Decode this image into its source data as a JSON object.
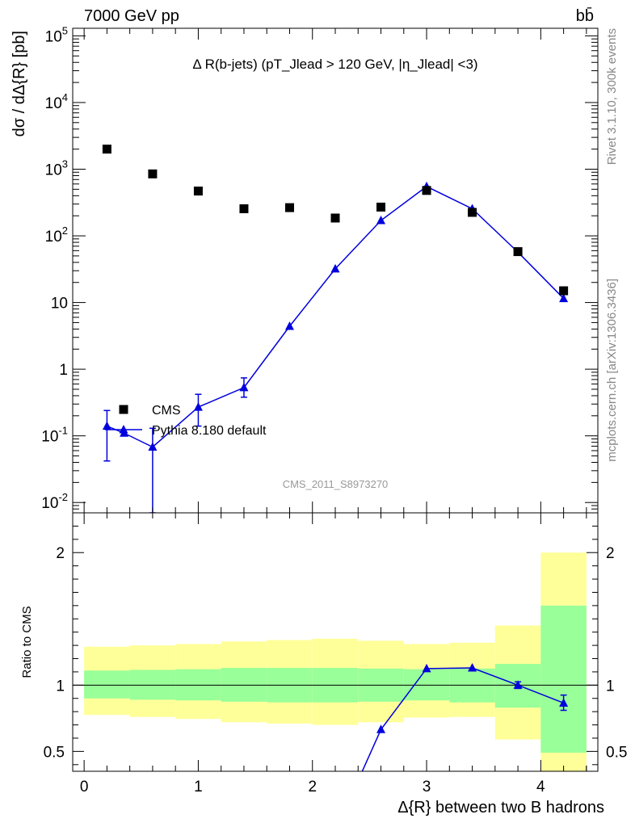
{
  "header": {
    "left": "7000 GeV pp",
    "right": "bb̄"
  },
  "side_texts": {
    "rivet": "Rivet 3.1.10,  300k events",
    "mcplots": "mcplots.cern.ch [arXiv:1306.3436]"
  },
  "watermark": "CMS_2011_S8973270",
  "colors": {
    "cms": "#000000",
    "pythia": "#0000dd",
    "band_outer": "#ffff99",
    "band_inner": "#99ff99"
  },
  "chart_data": [
    {
      "type": "scatter",
      "title": "Δ R(b-jets) (pT_Jlead >  120 GeV, |η_Jlead| <3)",
      "ylabel": "dσ / dΔ{R} [pb]",
      "yscale": "log",
      "ylim": [
        0.007,
        130000
      ],
      "xlim": [
        -0.1,
        4.5
      ],
      "y_tick_labels": [
        "10^5",
        "10^4",
        "10^3",
        "10^2",
        "10",
        "1",
        "10^-1",
        "10^-2"
      ],
      "legend_position": "bottom-left",
      "series": [
        {
          "name": "CMS",
          "marker": "square",
          "x": [
            0.2,
            0.6,
            1.0,
            1.4,
            1.8,
            2.2,
            2.6,
            3.0,
            3.4,
            3.8,
            4.2
          ],
          "y": [
            2000,
            850,
            470,
            255,
            265,
            185,
            270,
            480,
            225,
            58,
            15
          ]
        },
        {
          "name": "Pythia 8.180 default",
          "marker": "triangle",
          "x": [
            0.2,
            0.35,
            0.6,
            1.0,
            1.4,
            1.8,
            2.2,
            2.6,
            3.0,
            3.4,
            3.8,
            4.2
          ],
          "y": [
            0.14,
            0.11,
            0.068,
            0.27,
            0.53,
            4.4,
            32,
            170,
            550,
            255,
            57,
            11.5
          ],
          "y_low": [
            0.042,
            null,
            0.003,
            0.14,
            0.38,
            null,
            null,
            null,
            null,
            null,
            null,
            null
          ],
          "y_high": [
            0.24,
            null,
            0.13,
            0.42,
            0.74,
            null,
            null,
            null,
            null,
            null,
            null,
            null
          ]
        }
      ]
    },
    {
      "type": "scatter",
      "xlabel": "Δ{R} between two B hadrons",
      "ylabel": "Ratio to CMS",
      "ylim": [
        0.35,
        2.3
      ],
      "xlim": [
        -0.1,
        4.5
      ],
      "x_tick_labels": [
        "0",
        "1",
        "2",
        "3",
        "4"
      ],
      "y_tick_labels": [
        "0.5",
        "1",
        "2"
      ],
      "reference_line": 1,
      "bands": {
        "x_edges": [
          0.0,
          0.4,
          0.8,
          1.2,
          1.6,
          2.0,
          2.4,
          2.8,
          3.2,
          3.6,
          4.0,
          4.4
        ],
        "inner_low": [
          0.9,
          0.89,
          0.885,
          0.875,
          0.87,
          0.87,
          0.875,
          0.885,
          0.87,
          0.83,
          0.49
        ],
        "inner_high": [
          1.11,
          1.115,
          1.12,
          1.13,
          1.13,
          1.13,
          1.125,
          1.12,
          1.125,
          1.16,
          1.6
        ],
        "outer_low": [
          0.775,
          0.76,
          0.745,
          0.72,
          0.71,
          0.7,
          0.72,
          0.755,
          0.76,
          0.59,
          0.33
        ],
        "outer_high": [
          1.29,
          1.3,
          1.31,
          1.33,
          1.34,
          1.35,
          1.335,
          1.31,
          1.32,
          1.45,
          2.0
        ]
      },
      "series": [
        {
          "name": "Pythia 8.180 default",
          "marker": "triangle",
          "x": [
            2.4,
            2.6,
            3.0,
            3.4,
            3.8,
            4.2
          ],
          "y": [
            0.28,
            0.665,
            1.125,
            1.13,
            1.0,
            0.865
          ],
          "y_low": [
            null,
            null,
            null,
            null,
            0.975,
            0.81
          ],
          "y_high": [
            null,
            null,
            null,
            null,
            1.025,
            0.925
          ]
        }
      ]
    }
  ]
}
